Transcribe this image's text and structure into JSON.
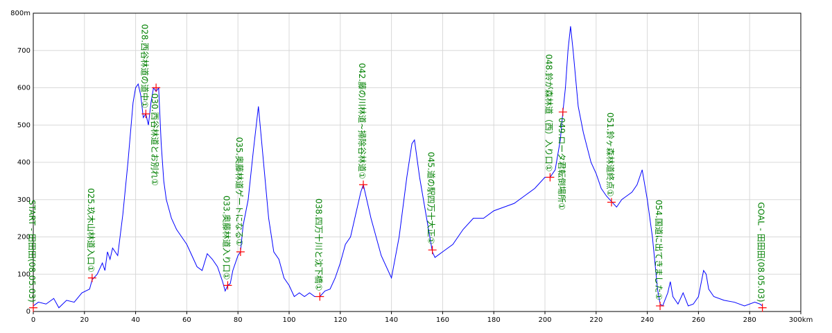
{
  "chart_data": {
    "type": "line",
    "x": [
      0,
      2,
      5,
      8,
      10,
      13,
      16,
      19,
      22,
      23,
      25,
      27,
      28,
      29,
      30,
      31,
      33,
      35,
      37,
      39,
      40,
      41,
      42,
      43,
      44,
      45,
      46,
      47,
      48,
      49,
      50,
      51,
      52,
      54,
      56,
      58,
      60,
      62,
      64,
      66,
      68,
      70,
      72,
      74,
      75,
      76,
      77,
      78,
      80,
      81,
      82,
      84,
      86,
      88,
      90,
      92,
      94,
      96,
      98,
      100,
      102,
      104,
      106,
      108,
      110,
      112,
      114,
      116,
      118,
      120,
      122,
      124,
      126,
      128,
      129,
      132,
      136,
      140,
      143,
      146,
      148,
      149,
      151,
      153,
      155,
      156,
      157,
      160,
      164,
      168,
      172,
      176,
      180,
      184,
      188,
      192,
      196,
      200,
      202,
      204,
      206,
      207,
      208,
      209,
      210,
      211,
      213,
      215,
      218,
      220,
      222,
      224,
      226,
      228,
      230,
      232,
      234,
      236,
      238,
      240,
      242,
      244,
      245,
      246,
      248,
      249,
      250,
      252,
      254,
      256,
      258,
      260,
      262,
      263,
      264,
      266,
      270,
      274,
      278,
      282,
      284,
      285
    ],
    "values": [
      15,
      25,
      20,
      35,
      10,
      30,
      25,
      50,
      60,
      85,
      100,
      130,
      110,
      160,
      140,
      170,
      150,
      260,
      400,
      560,
      600,
      610,
      580,
      520,
      530,
      500,
      560,
      600,
      590,
      600,
      450,
      350,
      300,
      250,
      220,
      200,
      180,
      150,
      120,
      110,
      155,
      140,
      120,
      80,
      55,
      70,
      75,
      110,
      150,
      160,
      230,
      300,
      430,
      550,
      400,
      250,
      160,
      140,
      90,
      70,
      40,
      50,
      40,
      50,
      40,
      40,
      55,
      60,
      90,
      130,
      180,
      200,
      260,
      320,
      340,
      250,
      150,
      90,
      200,
      360,
      450,
      460,
      360,
      280,
      200,
      160,
      145,
      160,
      180,
      220,
      250,
      250,
      270,
      280,
      290,
      310,
      330,
      360,
      360,
      380,
      460,
      535,
      600,
      700,
      765,
      700,
      550,
      480,
      400,
      370,
      330,
      310,
      295,
      280,
      300,
      310,
      320,
      340,
      380,
      300,
      200,
      60,
      20,
      15,
      50,
      80,
      40,
      20,
      50,
      15,
      20,
      40,
      110,
      100,
      60,
      40,
      30,
      25,
      15,
      25,
      20,
      15
    ],
    "color": "#0000ff",
    "xlim": [
      0,
      300
    ],
    "ylim": [
      0,
      800
    ],
    "xticks": [
      0,
      20,
      40,
      60,
      80,
      100,
      120,
      140,
      160,
      180,
      200,
      220,
      240,
      260,
      280,
      {
        "value": 300,
        "label": "300km"
      }
    ],
    "yticks": [
      0,
      100,
      200,
      300,
      400,
      500,
      600,
      700,
      {
        "value": 800,
        "label": "800m"
      }
    ],
    "grid": true,
    "markers": {
      "color": "#ff0000",
      "label_color": "#008000",
      "points": [
        {
          "label": "START - 田田田(08.05.03)",
          "x": 0,
          "y": 10
        },
        {
          "label": "025.玖木山林道入口①",
          "x": 23,
          "y": 90
        },
        {
          "label": "028.西谷林道の道中①",
          "x": 44,
          "y": 530
        },
        {
          "label": "030.西谷林道とお別れ①",
          "x": 48,
          "y": 600
        },
        {
          "label": "033.奥藤林道入り口①",
          "x": 76,
          "y": 70
        },
        {
          "label": "035.奥藤林道ゲートになる①",
          "x": 81,
          "y": 160
        },
        {
          "label": "038.四万十川と沈下橋①",
          "x": 112,
          "y": 40
        },
        {
          "label": "042.藤の川林道~掃除谷林道①",
          "x": 129,
          "y": 340
        },
        {
          "label": "045.道の駅四万十大正①",
          "x": 156,
          "y": 165
        },
        {
          "label": "048.鈴が森林道（西）入り口①",
          "x": 202,
          "y": 360
        },
        {
          "label": "049.ロータ君転倒場所①",
          "x": 207,
          "y": 535
        },
        {
          "label": "051.鈴ヶ森林道終点①",
          "x": 226,
          "y": 293
        },
        {
          "label": "054.国道に出てきました①",
          "x": 245,
          "y": 15
        },
        {
          "label": "GOAL - 田田田(08.05.03)",
          "x": 285,
          "y": 10
        }
      ]
    }
  }
}
